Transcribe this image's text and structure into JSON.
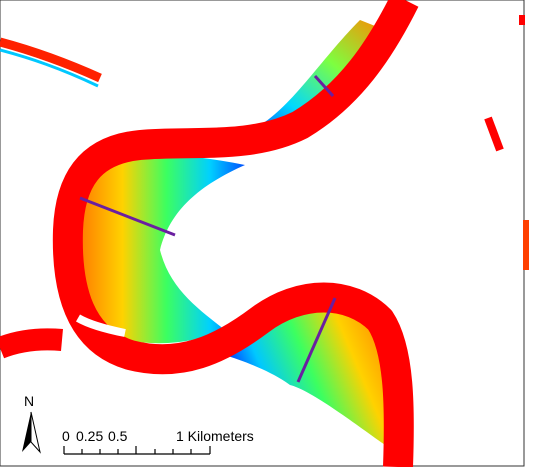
{
  "map": {
    "north_label": "N",
    "scale_bar": {
      "labels": [
        "0",
        "0.25",
        "0.5",
        "1 Kilometers"
      ]
    }
  }
}
